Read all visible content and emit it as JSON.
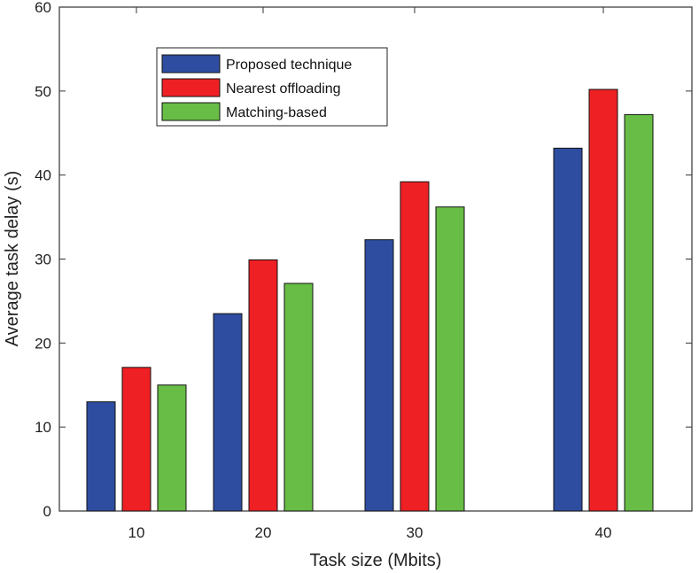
{
  "chart_data": {
    "type": "bar",
    "title": "",
    "xlabel": "Task size (Mbits)",
    "ylabel": "Average task delay (s)",
    "categories": [
      "10",
      "20",
      "30",
      "40"
    ],
    "ylim": [
      0,
      60
    ],
    "yticks": [
      "0",
      "10",
      "20",
      "30",
      "40",
      "50",
      "60"
    ],
    "legend_position": "top-left",
    "grid": false,
    "series": [
      {
        "name": "Proposed technique",
        "color": "#2E4DA0",
        "values": [
          13,
          23.5,
          32.3,
          43.2
        ]
      },
      {
        "name": "Nearest offloading",
        "color": "#EE2024",
        "values": [
          17.1,
          29.9,
          39.2,
          50.2
        ]
      },
      {
        "name": "Matching-based",
        "color": "#67BD45",
        "values": [
          15,
          27.1,
          36.2,
          47.2
        ]
      }
    ]
  }
}
